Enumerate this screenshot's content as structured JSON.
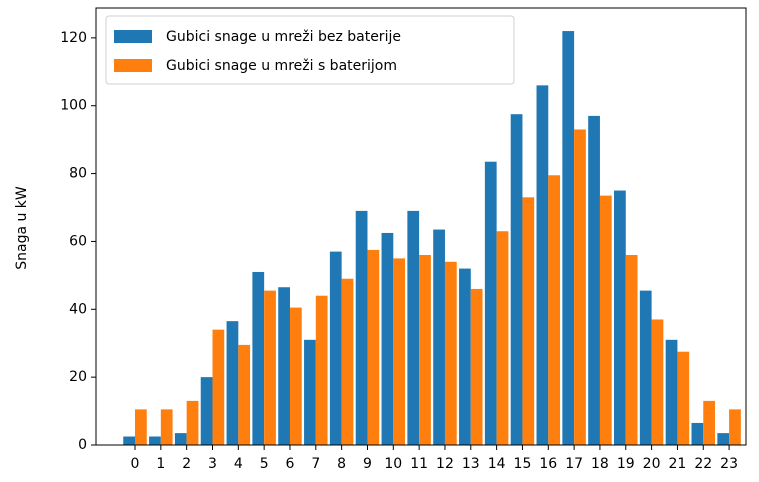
{
  "chart_data": {
    "type": "bar",
    "y_label": "Snaga u kW",
    "categories": [
      "0",
      "1",
      "2",
      "3",
      "4",
      "5",
      "6",
      "7",
      "8",
      "9",
      "10",
      "11",
      "12",
      "13",
      "14",
      "15",
      "16",
      "17",
      "18",
      "19",
      "20",
      "21",
      "22",
      "23"
    ],
    "series": [
      {
        "name": "Gubici snage u mreži bez baterije",
        "color": "#1f77b4",
        "values": [
          2.5,
          2.5,
          3.5,
          20,
          36.5,
          51,
          46.5,
          31,
          57,
          69,
          62.5,
          69,
          63.5,
          52,
          83.5,
          97.5,
          106,
          122,
          97,
          75,
          45.5,
          31,
          6.5,
          3.5
        ]
      },
      {
        "name": "Gubici snage u mreži s baterijom",
        "color": "#ff7f0e",
        "values": [
          10.5,
          10.5,
          13,
          34,
          29.5,
          45.5,
          40.5,
          44,
          49,
          57.5,
          55,
          56,
          54,
          46,
          63,
          73,
          79.5,
          93,
          73.5,
          56,
          37,
          27.5,
          13,
          10.5
        ]
      }
    ],
    "ylim": [
      0,
      128.8
    ],
    "yticks": [
      0,
      20,
      40,
      60,
      80,
      100,
      120
    ],
    "legend": "upper left"
  }
}
